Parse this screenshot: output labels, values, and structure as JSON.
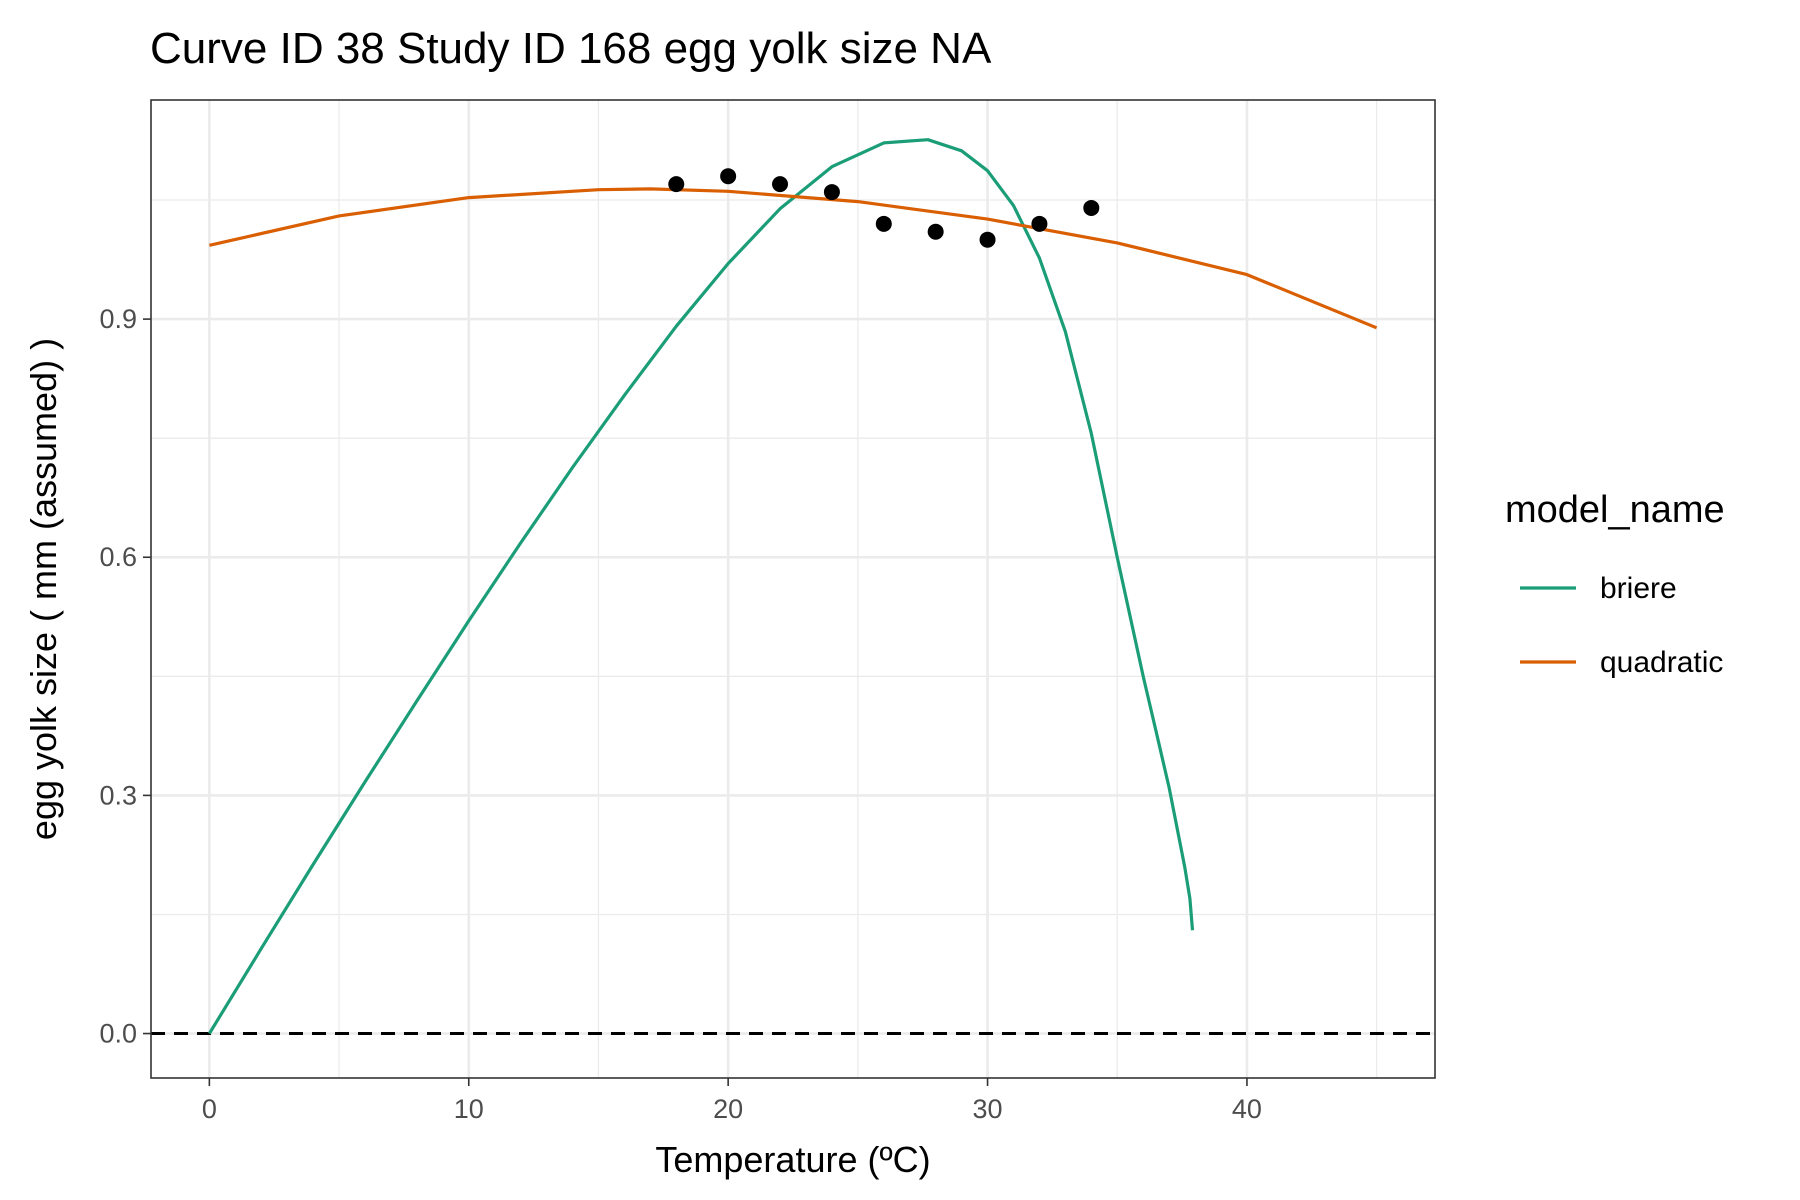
{
  "chart_data": {
    "type": "line",
    "title": "Curve ID 38 Study ID 168 egg yolk size NA",
    "xlabel": "Temperature (ºC)",
    "ylabel": "egg yolk size ( mm (assumed) )",
    "xlim": [
      -2.25,
      47.25
    ],
    "ylim": [
      -0.056,
      1.176
    ],
    "x_ticks": [
      0,
      10,
      20,
      30,
      40
    ],
    "x_tick_labels": [
      "0",
      "10",
      "20",
      "30",
      "40"
    ],
    "y_ticks": [
      0.0,
      0.3,
      0.6,
      0.9
    ],
    "y_tick_labels": [
      "0.0",
      "0.3",
      "0.6",
      "0.9"
    ],
    "grid": true,
    "reference_line": {
      "y": 0,
      "style": "dashed",
      "color": "#000000"
    },
    "legend": {
      "title": "model_name",
      "position": "right"
    },
    "points": {
      "x": [
        18,
        20,
        22,
        24,
        26,
        28,
        30,
        32,
        34
      ],
      "y": [
        1.07,
        1.08,
        1.07,
        1.06,
        1.02,
        1.01,
        1.0,
        1.02,
        1.04
      ],
      "color": "#000000"
    },
    "series": [
      {
        "name": "briere",
        "color": "#1b9e77",
        "x": [
          0,
          2,
          4,
          6,
          8,
          10,
          12,
          14,
          16,
          18,
          20,
          22,
          24,
          26,
          27.7,
          29,
          30,
          31,
          32,
          33,
          34,
          35,
          36,
          36.5,
          37,
          37.3,
          37.6,
          37.8,
          37.9
        ],
        "y": [
          0.0,
          0.107,
          0.213,
          0.317,
          0.419,
          0.52,
          0.618,
          0.713,
          0.804,
          0.891,
          0.97,
          1.039,
          1.092,
          1.122,
          1.126,
          1.112,
          1.087,
          1.043,
          0.977,
          0.884,
          0.756,
          0.6,
          0.45,
          0.38,
          0.31,
          0.26,
          0.21,
          0.17,
          0.13
        ]
      },
      {
        "name": "quadratic",
        "color": "#d95f02",
        "x": [
          0,
          5,
          10,
          15,
          17,
          20,
          25,
          30,
          35,
          40,
          45
        ],
        "y": [
          0.993,
          1.03,
          1.053,
          1.063,
          1.064,
          1.061,
          1.048,
          1.026,
          0.996,
          0.956,
          0.889
        ]
      }
    ]
  }
}
